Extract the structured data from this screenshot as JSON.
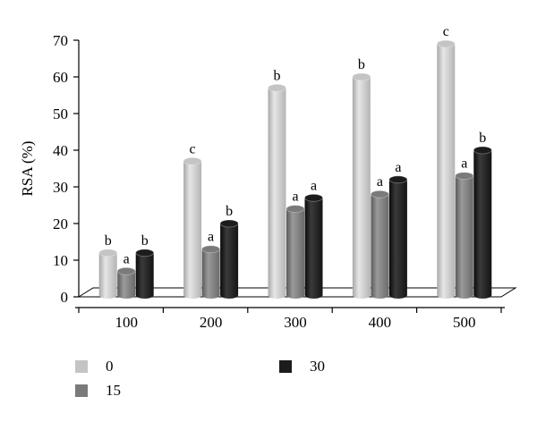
{
  "chart_data": {
    "type": "bar",
    "style": "3d-grouped-bars",
    "ylabel": "RSA (%)",
    "xlabel": "",
    "ylim": [
      0,
      70
    ],
    "yticks": [
      0,
      10,
      20,
      30,
      40,
      50,
      60,
      70
    ],
    "categories": [
      "100",
      "200",
      "300",
      "400",
      "500"
    ],
    "series": [
      {
        "name": "0",
        "color": "#c4c4c4",
        "values": [
          12,
          37,
          57,
          60,
          69
        ],
        "sig": [
          "b",
          "c",
          "b",
          "b",
          "c"
        ]
      },
      {
        "name": "15",
        "color": "#7a7a7a",
        "values": [
          7,
          13,
          24,
          28,
          33
        ],
        "sig": [
          "a",
          "a",
          "a",
          "a",
          "a"
        ]
      },
      {
        "name": "30",
        "color": "#1c1c1c",
        "values": [
          12,
          20,
          27,
          32,
          40
        ],
        "sig": [
          "b",
          "b",
          "a",
          "a",
          "b"
        ]
      }
    ],
    "legend_position": "bottom",
    "grid": false
  }
}
